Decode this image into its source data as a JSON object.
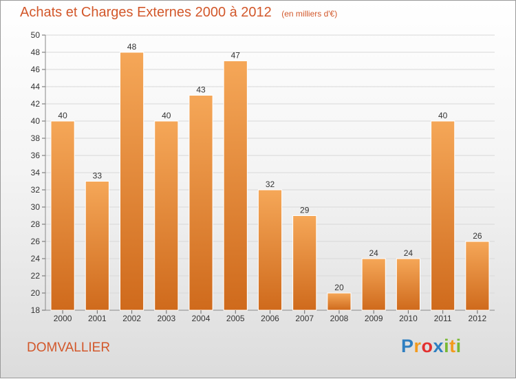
{
  "header": {
    "title": "Achats et Charges Externes 2000 à 2012",
    "unit": "(en milliers d'€)"
  },
  "footer": {
    "commune": "DOMVALLIER",
    "logo_letters": [
      "P",
      "r",
      "o",
      "x",
      "i",
      "t",
      "i"
    ],
    "logo_colors": [
      "#2f7fc1",
      "#f39a1d",
      "#e3302f",
      "#2f7fc1",
      "#78b833",
      "#f39a1d",
      "#78b833"
    ]
  },
  "colors": {
    "bar_top": "#f5a758",
    "bar_bottom": "#cf6a1c",
    "title": "#d2572a"
  },
  "chart_data": {
    "type": "bar",
    "title": "Achats et Charges Externes 2000 à 2012",
    "subtitle": "(en milliers d'€)",
    "xlabel": "",
    "ylabel": "",
    "ylim": [
      18,
      50
    ],
    "ytick_step": 2,
    "grid": true,
    "categories": [
      "2000",
      "2001",
      "2002",
      "2003",
      "2004",
      "2005",
      "2006",
      "2007",
      "2008",
      "2009",
      "2010",
      "2011",
      "2012"
    ],
    "values": [
      40,
      33,
      48,
      40,
      43,
      47,
      32,
      29,
      20,
      24,
      24,
      40,
      26
    ]
  }
}
